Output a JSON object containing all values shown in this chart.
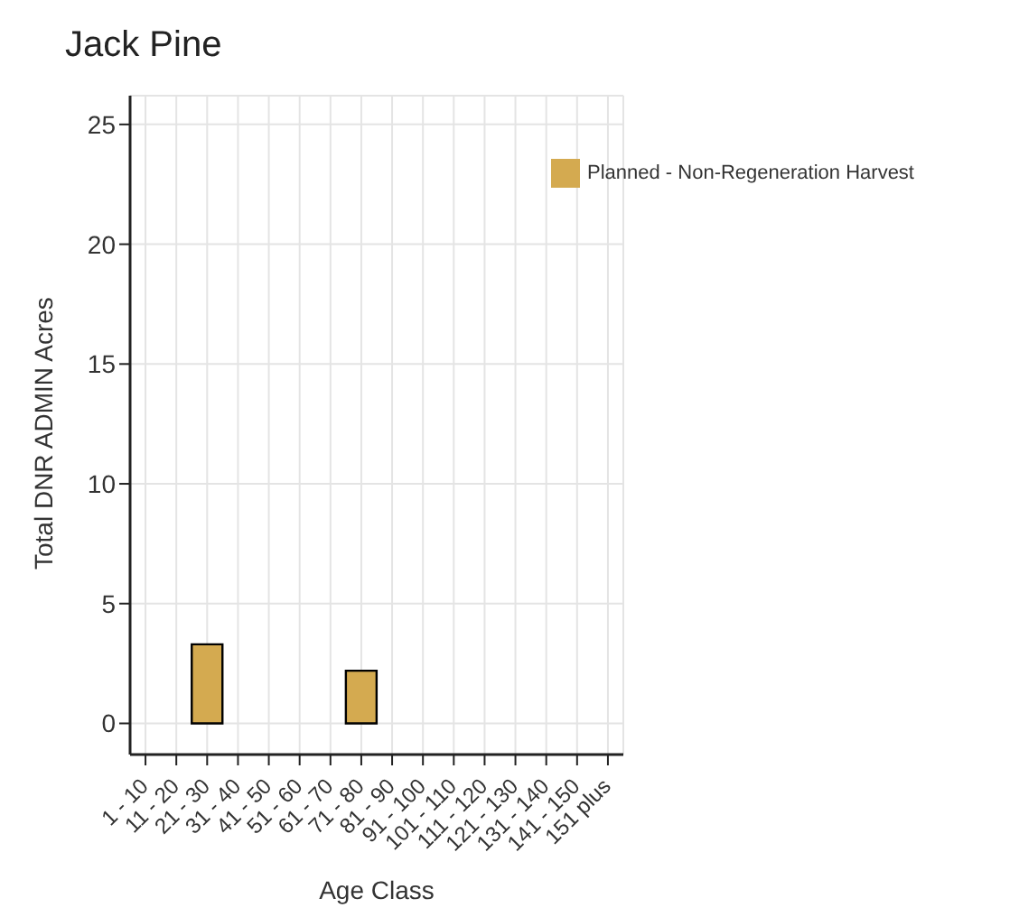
{
  "chart_data": {
    "type": "bar",
    "title": "Jack Pine",
    "xlabel": "Age Class",
    "ylabel": "Total DNR ADMIN Acres",
    "categories": [
      "1 - 10",
      "11 - 20",
      "21 - 30",
      "31 - 40",
      "41 - 50",
      "51 - 60",
      "61 - 70",
      "71 - 80",
      "81 - 90",
      "91 - 100",
      "101 - 110",
      "111 - 120",
      "121 - 130",
      "131 - 140",
      "141 - 150",
      "151 plus"
    ],
    "series": [
      {
        "name": "Planned - Non-Regeneration Harvest",
        "color": "#d4aa50",
        "values": [
          null,
          null,
          3.3,
          null,
          null,
          null,
          null,
          2.2,
          null,
          null,
          null,
          null,
          null,
          null,
          null,
          null
        ]
      }
    ],
    "ylim": [
      -1.3,
      26.2
    ],
    "yticks": [
      0,
      5,
      10,
      15,
      20,
      25
    ],
    "grid": true,
    "legend": "top right"
  }
}
